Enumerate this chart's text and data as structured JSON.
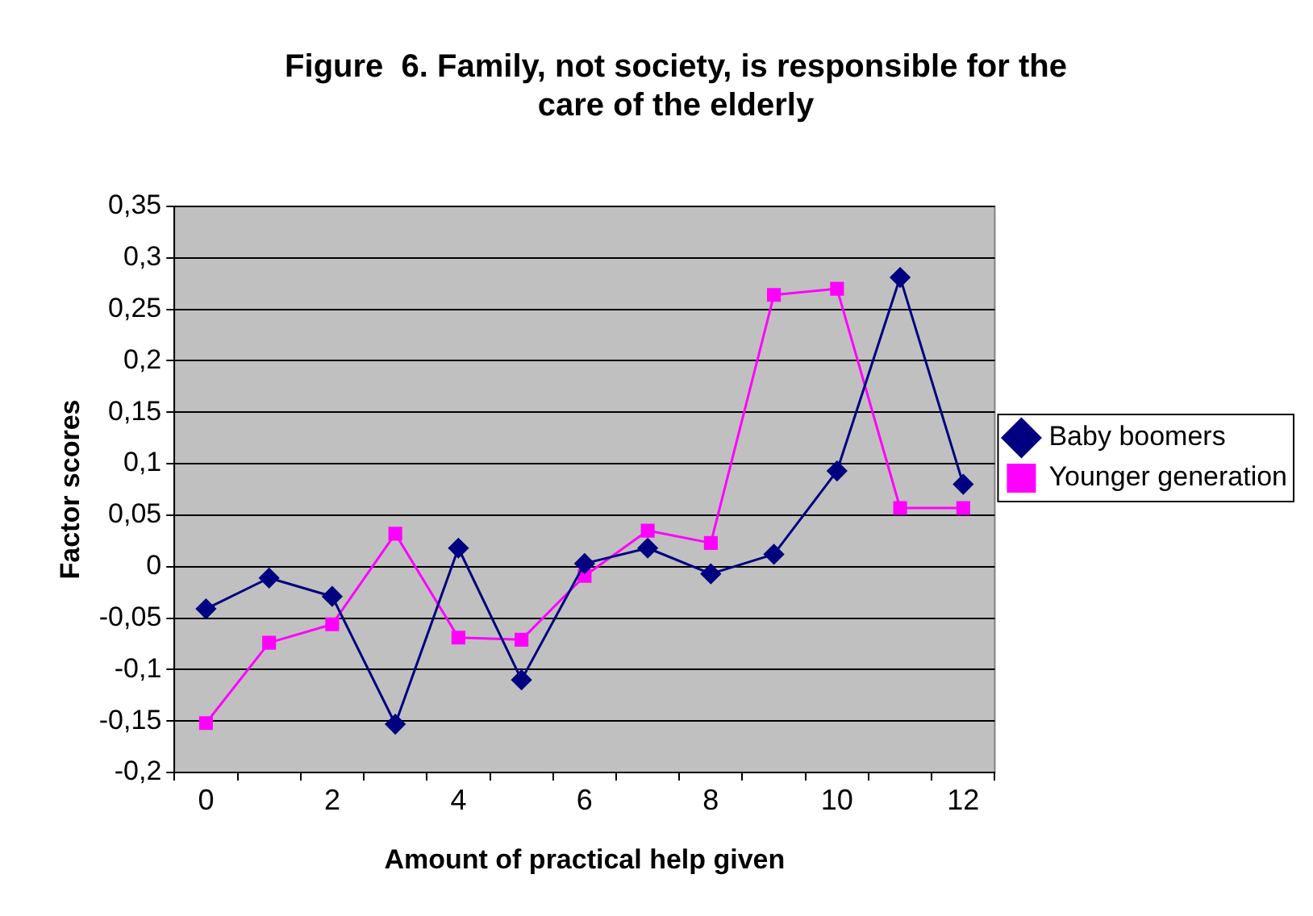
{
  "chart_data": {
    "type": "line",
    "title": "Figure  6. Family, not society, is responsible for the care of the elderly",
    "xlabel": "Amount of practical help given",
    "ylabel": "Factor scores",
    "categories": [
      "0",
      null,
      "2",
      null,
      "4",
      null,
      "6",
      null,
      "8",
      null,
      "10",
      null,
      "12"
    ],
    "series": [
      {
        "name": "Baby boomers",
        "color": "#000080",
        "marker": "diamond",
        "values": [
          -0.041,
          -0.011,
          -0.029,
          -0.153,
          0.018,
          -0.11,
          0.003,
          0.018,
          -0.007,
          0.012,
          0.093,
          0.281,
          0.08
        ]
      },
      {
        "name": "Younger generation",
        "color": "#ff00ff",
        "marker": "square",
        "values": [
          -0.152,
          -0.074,
          -0.056,
          0.032,
          -0.069,
          -0.071,
          -0.009,
          0.035,
          0.023,
          0.264,
          0.27,
          0.057,
          0.057
        ]
      }
    ],
    "ylim": [
      -0.2,
      0.35
    ],
    "yticks": [
      {
        "value": -0.2,
        "label": "-0,2"
      },
      {
        "value": -0.15,
        "label": "-0,15"
      },
      {
        "value": -0.1,
        "label": "-0,1"
      },
      {
        "value": -0.05,
        "label": "-0,05"
      },
      {
        "value": 0,
        "label": "0"
      },
      {
        "value": 0.05,
        "label": "0,05"
      },
      {
        "value": 0.1,
        "label": "0,1"
      },
      {
        "value": 0.15,
        "label": "0,15"
      },
      {
        "value": 0.2,
        "label": "0,2"
      },
      {
        "value": 0.25,
        "label": "0,25"
      },
      {
        "value": 0.3,
        "label": "0,3"
      },
      {
        "value": 0.35,
        "label": "0,35"
      }
    ],
    "grid": "y",
    "legend": "right",
    "line_style": "solid"
  }
}
